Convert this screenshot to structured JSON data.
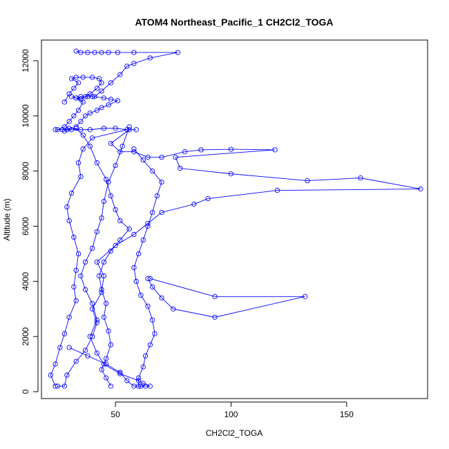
{
  "chart_data": {
    "type": "line",
    "title": "ATOM4 Northeast_Pacific_1 CH2Cl2_TOGA",
    "xlabel": "CH2Cl2_TOGA",
    "ylabel": "Altitude (m)",
    "xlim": [
      18,
      185
    ],
    "ylim": [
      -250,
      12750
    ],
    "xticks": [
      50,
      100,
      150
    ],
    "yticks": [
      0,
      2000,
      4000,
      6000,
      8000,
      10000,
      12000
    ],
    "grid": false,
    "series_color": "#0000ff",
    "marker": "open-circle",
    "series": [
      {
        "points": [
          [
            25,
            200
          ],
          [
            28,
            200
          ],
          [
            29,
            600
          ],
          [
            33,
            1100
          ],
          [
            37,
            1500
          ],
          [
            40,
            2000
          ],
          [
            42,
            2500
          ],
          [
            40,
            3000
          ],
          [
            44,
            3600
          ],
          [
            45,
            4200
          ],
          [
            42,
            4700
          ],
          [
            50,
            5300
          ],
          [
            58,
            5700
          ],
          [
            64,
            6100
          ],
          [
            70,
            6500
          ],
          [
            84,
            6800
          ],
          [
            90,
            7000
          ],
          [
            120,
            7300
          ],
          [
            182,
            7350
          ],
          [
            156,
            7750
          ],
          [
            133,
            7650
          ],
          [
            100,
            7900
          ],
          [
            78,
            8100
          ],
          [
            76,
            8500
          ],
          [
            119,
            8770
          ],
          [
            100,
            8790
          ],
          [
            87,
            8770
          ],
          [
            80,
            8700
          ],
          [
            70,
            8500
          ],
          [
            64,
            8500
          ],
          [
            58,
            8700
          ],
          [
            52,
            8700
          ],
          [
            48,
            9000
          ],
          [
            56,
            9500
          ],
          [
            59,
            9500
          ]
        ]
      },
      {
        "points": [
          [
            24,
            9500
          ],
          [
            27,
            9500
          ],
          [
            29,
            9500
          ],
          [
            31,
            9500
          ],
          [
            35,
            9500
          ],
          [
            39,
            9500
          ],
          [
            45,
            9550
          ],
          [
            50,
            9550
          ],
          [
            55,
            9500
          ],
          [
            40,
            9200
          ],
          [
            36,
            8800
          ],
          [
            34,
            8300
          ],
          [
            35,
            7800
          ],
          [
            31,
            7200
          ],
          [
            29,
            6700
          ],
          [
            30,
            6200
          ],
          [
            32,
            5600
          ],
          [
            34,
            5000
          ],
          [
            33,
            4400
          ],
          [
            32,
            3800
          ],
          [
            33,
            3300
          ],
          [
            30,
            2700
          ],
          [
            28,
            2100
          ],
          [
            26,
            1600
          ],
          [
            24,
            1000
          ],
          [
            22,
            600
          ],
          [
            24,
            200
          ]
        ]
      },
      {
        "points": [
          [
            30,
            1600
          ],
          [
            38,
            1300
          ],
          [
            46,
            1000
          ],
          [
            52,
            700
          ],
          [
            55,
            400
          ],
          [
            58,
            200
          ],
          [
            61,
            200
          ],
          [
            63,
            200
          ],
          [
            65,
            200
          ],
          [
            62,
            300
          ],
          [
            60,
            400
          ],
          [
            52,
            650
          ],
          [
            45,
            1000
          ],
          [
            42,
            1400
          ],
          [
            39,
            2000
          ],
          [
            42,
            2600
          ],
          [
            40,
            3200
          ],
          [
            37,
            3700
          ],
          [
            35,
            4200
          ],
          [
            37,
            4700
          ],
          [
            40,
            5200
          ],
          [
            42,
            5800
          ],
          [
            44,
            6300
          ],
          [
            45,
            6900
          ],
          [
            47,
            7600
          ],
          [
            50,
            8200
          ],
          [
            53,
            8900
          ],
          [
            56,
            9600
          ]
        ]
      },
      {
        "points": [
          [
            48,
            200
          ],
          [
            46,
            500
          ],
          [
            44,
            800
          ],
          [
            46,
            1200
          ],
          [
            48,
            1700
          ],
          [
            47,
            2200
          ],
          [
            45,
            2700
          ],
          [
            46,
            3200
          ],
          [
            44,
            3700
          ],
          [
            43,
            4200
          ],
          [
            45,
            4700
          ],
          [
            48,
            5100
          ],
          [
            52,
            5500
          ],
          [
            56,
            5900
          ],
          [
            52,
            6200
          ],
          [
            50,
            6600
          ],
          [
            48,
            7100
          ],
          [
            46,
            7700
          ],
          [
            42,
            8300
          ],
          [
            39,
            8900
          ],
          [
            36,
            9300
          ],
          [
            33,
            9550
          ],
          [
            30,
            9550
          ],
          [
            28,
            9450
          ]
        ]
      },
      {
        "points": [
          [
            25,
            9500
          ],
          [
            28,
            9600
          ],
          [
            30,
            9800
          ],
          [
            32,
            10000
          ],
          [
            34,
            10200
          ],
          [
            36,
            10500
          ],
          [
            33,
            10650
          ],
          [
            35,
            10700
          ],
          [
            38,
            10700
          ],
          [
            40,
            10700
          ],
          [
            45,
            10650
          ],
          [
            48,
            10600
          ],
          [
            51,
            10550
          ],
          [
            47,
            10400
          ],
          [
            44,
            10300
          ],
          [
            42,
            10200
          ],
          [
            39,
            10100
          ],
          [
            37,
            10000
          ],
          [
            35,
            9800
          ],
          [
            33,
            9600
          ]
        ]
      },
      {
        "points": [
          [
            28,
            10500
          ],
          [
            30,
            10800
          ],
          [
            32,
            11000
          ],
          [
            34,
            11200
          ],
          [
            31,
            11350
          ],
          [
            33,
            11400
          ],
          [
            36,
            11400
          ],
          [
            40,
            11400
          ],
          [
            43,
            11350
          ],
          [
            44,
            11200
          ],
          [
            42,
            11000
          ],
          [
            39,
            10800
          ],
          [
            37,
            10700
          ],
          [
            35,
            10600
          ],
          [
            33,
            10650
          ],
          [
            31,
            10700
          ]
        ]
      },
      {
        "points": [
          [
            33,
            12350
          ],
          [
            35,
            12300
          ],
          [
            38,
            12300
          ],
          [
            41,
            12300
          ],
          [
            44,
            12300
          ],
          [
            47,
            12300
          ],
          [
            51,
            12300
          ],
          [
            58,
            12300
          ],
          [
            77,
            12300
          ],
          [
            65,
            12100
          ],
          [
            58,
            11900
          ],
          [
            55,
            11800
          ],
          [
            52,
            11500
          ],
          [
            48,
            11200
          ],
          [
            44,
            10900
          ],
          [
            41,
            10700
          ]
        ]
      },
      {
        "points": [
          [
            65,
            4100
          ],
          [
            93,
            3450
          ],
          [
            132,
            3450
          ],
          [
            93,
            2700
          ],
          [
            75,
            3000
          ],
          [
            70,
            3400
          ],
          [
            66,
            3800
          ],
          [
            64,
            4100
          ]
        ]
      },
      {
        "points": [
          [
            60,
            200
          ],
          [
            60,
            500
          ],
          [
            62,
            900
          ],
          [
            63,
            1300
          ],
          [
            65,
            1700
          ],
          [
            67,
            2100
          ],
          [
            66,
            2600
          ],
          [
            64,
            3100
          ],
          [
            61,
            3500
          ],
          [
            59,
            4000
          ],
          [
            58,
            4500
          ],
          [
            60,
            5000
          ],
          [
            62,
            5500
          ],
          [
            64,
            6000
          ],
          [
            66,
            6500
          ],
          [
            68,
            7100
          ],
          [
            70,
            7600
          ],
          [
            66,
            8000
          ],
          [
            62,
            8400
          ],
          [
            58,
            8800
          ]
        ]
      }
    ]
  }
}
